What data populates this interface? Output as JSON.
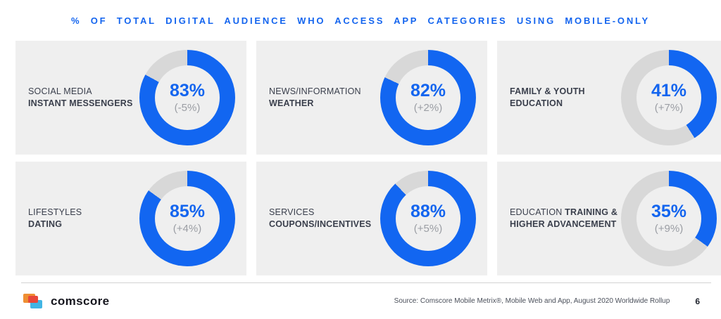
{
  "header": {
    "title": "% OF TOTAL DIGITAL AUDIENCE WHO ACCESS APP CATEGORIES USING MOBILE-ONLY"
  },
  "chart_data": {
    "type": "pie",
    "subtype": "donut-grid",
    "title": "% OF TOTAL DIGITAL AUDIENCE WHO ACCESS APP CATEGORIES USING MOBILE-ONLY",
    "unit": "percent of total digital audience, mobile-only access",
    "layout": "3 columns x 2 rows, donut fill starts at 12 o'clock clockwise",
    "colors": {
      "filled": "#1266f1",
      "remainder": "#d8d8d8",
      "panel_bg": "#efefef",
      "value_text": "#1465ef",
      "change_text": "#9b9ea4"
    },
    "panels": [
      {
        "label_regular": "SOCIAL MEDIA",
        "label_bold": "",
        "label_line2": "INSTANT MESSENGERS",
        "value": 83,
        "value_label": "83%",
        "change": -5,
        "change_label": "(-5%)"
      },
      {
        "label_regular": "NEWS/INFORMATION",
        "label_bold": "",
        "label_line2": "WEATHER",
        "value": 82,
        "value_label": "82%",
        "change": 2,
        "change_label": "(+2%)"
      },
      {
        "label_regular": "",
        "label_bold": "FAMILY & YOUTH",
        "label_line2": "EDUCATION",
        "value": 41,
        "value_label": "41%",
        "change": 7,
        "change_label": "(+7%)"
      },
      {
        "label_regular": "LIFESTYLES",
        "label_bold": "",
        "label_line2": "DATING",
        "value": 85,
        "value_label": "85%",
        "change": 4,
        "change_label": "(+4%)"
      },
      {
        "label_regular": "SERVICES",
        "label_bold": "",
        "label_line2": "COUPONS/INCENTIVES",
        "value": 88,
        "value_label": "88%",
        "change": 5,
        "change_label": "(+5%)"
      },
      {
        "label_regular": "EDUCATION ",
        "label_bold": "TRAINING &",
        "label_line2": "HIGHER ADVANCEMENT",
        "value": 35,
        "value_label": "35%",
        "change": 9,
        "change_label": "(+9%)"
      }
    ]
  },
  "footer": {
    "logo_text": "comscore",
    "source": "Source: Comscore Mobile Metrix®, Mobile Web and App, August 2020 Worldwide Rollup",
    "page_number": "6"
  }
}
